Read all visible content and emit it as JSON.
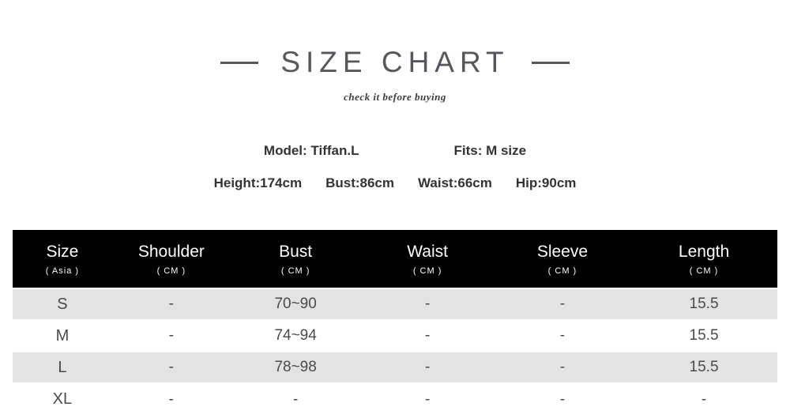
{
  "colors": {
    "header_bg": "#000000",
    "stripe_bg": "#e3e3e3",
    "title_color": "#56575b",
    "body_text": "#4a4a4b"
  },
  "header": {
    "title": "SIZE CHART",
    "subtitle": "check it before buying"
  },
  "model_info": {
    "model": "Model: Tiffan.L",
    "fits": "Fits: M size",
    "measurements": [
      "Height:174cm",
      "Bust:86cm",
      "Waist:66cm",
      "Hip:90cm"
    ]
  },
  "size_table": {
    "columns": [
      {
        "label": "Size",
        "sub": "( Asia )"
      },
      {
        "label": "Shoulder",
        "sub": "( CM )"
      },
      {
        "label": "Bust",
        "sub": "( CM )"
      },
      {
        "label": "Waist",
        "sub": "( CM )"
      },
      {
        "label": "Sleeve",
        "sub": "( CM )"
      },
      {
        "label": "Length",
        "sub": "( CM )"
      }
    ],
    "rows": [
      {
        "cells": [
          "S",
          "-",
          "70~90",
          "-",
          "-",
          "15.5"
        ]
      },
      {
        "cells": [
          "M",
          "-",
          "74~94",
          "-",
          "-",
          "15.5"
        ]
      },
      {
        "cells": [
          "L",
          "-",
          "78~98",
          "-",
          "-",
          "15.5"
        ]
      },
      {
        "cells": [
          "XL",
          "-",
          "-",
          "-",
          "-",
          "-"
        ]
      }
    ]
  },
  "chart_data": {
    "type": "table",
    "title": "SIZE CHART",
    "columns": [
      "Size ( Asia )",
      "Shoulder ( CM )",
      "Bust ( CM )",
      "Waist ( CM )",
      "Sleeve ( CM )",
      "Length ( CM )"
    ],
    "rows": [
      [
        "S",
        "-",
        "70~90",
        "-",
        "-",
        "15.5"
      ],
      [
        "M",
        "-",
        "74~94",
        "-",
        "-",
        "15.5"
      ],
      [
        "L",
        "-",
        "78~98",
        "-",
        "-",
        "15.5"
      ],
      [
        "XL",
        "-",
        "-",
        "-",
        "-",
        "-"
      ]
    ]
  }
}
